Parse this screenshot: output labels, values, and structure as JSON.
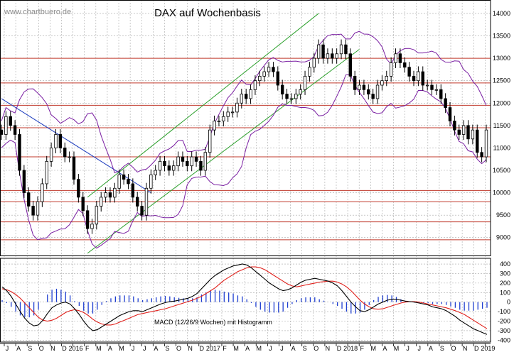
{
  "watermark": "www.chartbuero.de",
  "chart_data": {
    "type": "line",
    "title": "DAX auf Wochenbasis",
    "price_panel": {
      "ylim": [
        8600,
        14300
      ],
      "yticks": [
        9000,
        9500,
        10000,
        10500,
        11000,
        11500,
        12000,
        12500,
        13000,
        13500,
        14000
      ],
      "horizontal_levels": [
        8950,
        9350,
        9800,
        10050,
        10800,
        11450,
        11950,
        12450,
        13000
      ],
      "candles_close": [
        11300,
        11700,
        11500,
        11300,
        10500,
        10000,
        9700,
        9500,
        9800,
        10200,
        10700,
        11000,
        11300,
        11000,
        10800,
        10800,
        10300,
        9900,
        9600,
        9200,
        9300,
        9700,
        9900,
        10000,
        9900,
        10100,
        10400,
        10300,
        10200,
        9900,
        9700,
        9500,
        10100,
        10400,
        10500,
        10700,
        10600,
        10500,
        10600,
        10800,
        10700,
        10600,
        10800,
        10700,
        10500,
        10900,
        11400,
        11600,
        11600,
        11700,
        11800,
        11800,
        12000,
        12200,
        12100,
        12300,
        12500,
        12600,
        12700,
        12800,
        12700,
        12400,
        12200,
        12100,
        12100,
        12200,
        12300,
        12600,
        12800,
        13000,
        13300,
        13000,
        13100,
        13000,
        13100,
        13300,
        13100,
        12600,
        12300,
        12400,
        12300,
        12200,
        12100,
        12400,
        12500,
        12600,
        12900,
        13100,
        12900,
        12800,
        12600,
        12500,
        12700,
        12400,
        12400,
        12300,
        12300,
        12100,
        11900,
        11600,
        11400,
        11300,
        11500,
        11200,
        11400,
        10900,
        10800,
        11400
      ]
    },
    "macd_panel": {
      "title": "MACD (12/26/9 Wochen) mit Histogramm",
      "ylim": [
        -420,
        460
      ],
      "yticks": [
        400,
        300,
        200,
        100,
        0,
        -100,
        -200,
        -300,
        -400
      ],
      "macd": [
        160,
        120,
        60,
        -20,
        -100,
        -170,
        -220,
        -250,
        -240,
        -190,
        -120,
        -60,
        -30,
        -10,
        0,
        -20,
        -70,
        -130,
        -200,
        -260,
        -300,
        -290,
        -260,
        -230,
        -200,
        -170,
        -140,
        -120,
        -100,
        -90,
        -90,
        -100,
        -80,
        -60,
        -40,
        -20,
        -5,
        5,
        10,
        20,
        30,
        40,
        60,
        90,
        140,
        190,
        240,
        280,
        310,
        340,
        360,
        380,
        390,
        400,
        390,
        360,
        320,
        280,
        240,
        200,
        170,
        140,
        120,
        130,
        150,
        180,
        210,
        230,
        240,
        250,
        240,
        230,
        220,
        200,
        170,
        120,
        60,
        0,
        -50,
        -90,
        -100,
        -80,
        -50,
        -20,
        0,
        20,
        30,
        30,
        20,
        10,
        5,
        0,
        -10,
        -20,
        -30,
        -50,
        -60,
        -70,
        -90,
        -120,
        -150,
        -190,
        -220,
        -250,
        -280,
        -300,
        -320,
        -340
      ],
      "signal": [
        140,
        130,
        110,
        80,
        40,
        -10,
        -60,
        -110,
        -160,
        -190,
        -200,
        -190,
        -170,
        -140,
        -110,
        -90,
        -80,
        -90,
        -110,
        -140,
        -180,
        -210,
        -230,
        -240,
        -240,
        -230,
        -210,
        -190,
        -170,
        -150,
        -130,
        -120,
        -110,
        -100,
        -90,
        -80,
        -70,
        -55,
        -40,
        -25,
        -10,
        5,
        20,
        40,
        60,
        90,
        120,
        150,
        190,
        230,
        260,
        290,
        320,
        340,
        360,
        370,
        370,
        360,
        340,
        310,
        280,
        250,
        220,
        190,
        170,
        160,
        170,
        180,
        190,
        200,
        210,
        215,
        220,
        220,
        210,
        190,
        160,
        120,
        70,
        20,
        -20,
        -50,
        -70,
        -75,
        -70,
        -55,
        -40,
        -25,
        -10,
        0,
        5,
        5,
        0,
        -10,
        -20,
        -30,
        -40,
        -50,
        -60,
        -75,
        -90,
        -110,
        -130,
        -160,
        -190,
        -220,
        -250,
        -280
      ],
      "histogram": [
        20,
        -10,
        -50,
        -100,
        -140,
        -160,
        -160,
        -140,
        -80,
        0,
        80,
        130,
        140,
        130,
        110,
        70,
        10,
        -40,
        -90,
        -120,
        -120,
        -80,
        -30,
        10,
        40,
        60,
        70,
        70,
        70,
        60,
        40,
        20,
        30,
        40,
        50,
        60,
        65,
        60,
        50,
        45,
        40,
        35,
        40,
        50,
        80,
        100,
        120,
        130,
        120,
        110,
        100,
        90,
        70,
        60,
        30,
        -10,
        -50,
        -80,
        -100,
        -110,
        -110,
        -110,
        -100,
        -60,
        -20,
        20,
        40,
        50,
        50,
        50,
        30,
        15,
        0,
        -20,
        -40,
        -70,
        -100,
        -120,
        -120,
        -110,
        -80,
        -30,
        20,
        55,
        70,
        75,
        70,
        55,
        30,
        10,
        0,
        -5,
        -10,
        -10,
        -10,
        -20,
        -20,
        -20,
        -30,
        -45,
        -60,
        -80,
        -90,
        -90,
        -90,
        -80,
        -70,
        -60
      ]
    },
    "x_labels": [
      "J",
      "A",
      "S",
      "O",
      "N",
      "D",
      "2016",
      "F",
      "M",
      "A",
      "M",
      "J",
      "J",
      "A",
      "S",
      "O",
      "N",
      "D",
      "2017",
      "F",
      "M",
      "A",
      "M",
      "J",
      "J",
      "A",
      "S",
      "O",
      "N",
      "D",
      "2018",
      "F",
      "M",
      "A",
      "M",
      "J",
      "J",
      "A",
      "S",
      "O",
      "N",
      "D",
      "2019"
    ],
    "colors": {
      "price": "#000000",
      "bollinger": "#7a1fa2",
      "trend_channel": "#2ca02c",
      "downtrend": "#1f3fbf",
      "levels": "#c0392b",
      "macd": "#000000",
      "signal": "#e0201b",
      "histogram": "#1f3fd0",
      "grid": "#a8a8a8"
    }
  }
}
